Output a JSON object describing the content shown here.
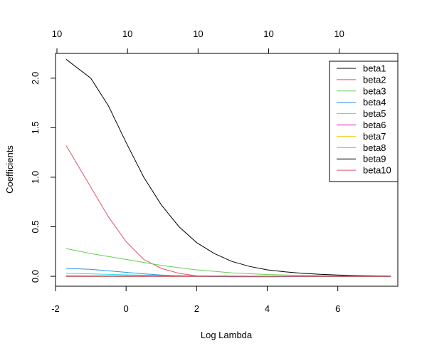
{
  "chart_data": {
    "type": "line",
    "title": "",
    "xlabel": "Log Lambda",
    "ylabel": "Coefficients",
    "xlim": [
      -2,
      7.7
    ],
    "ylim": [
      -0.1,
      2.25
    ],
    "x_ticks": [
      -2,
      0,
      2,
      4,
      6
    ],
    "x_tick_labels": [
      "-2",
      "0",
      "2",
      "4",
      "6"
    ],
    "y_ticks": [
      0.0,
      0.5,
      1.0,
      1.5,
      2.0
    ],
    "y_tick_labels": [
      "0.0",
      "0.5",
      "1.0",
      "1.5",
      "2.0"
    ],
    "top_axis": {
      "ticks": [
        -2,
        0,
        2,
        4,
        6
      ],
      "labels": [
        "10",
        "10",
        "10",
        "10",
        "10"
      ]
    },
    "grid": false,
    "legend_position": "top-right",
    "series": [
      {
        "name": "beta1",
        "color": "#000000",
        "x": [
          -1.7,
          -1.0,
          -0.5,
          0.0,
          0.5,
          1.0,
          1.5,
          2.0,
          2.5,
          3.0,
          3.5,
          4.0,
          4.5,
          5.0,
          5.5,
          6.0,
          6.5,
          7.0,
          7.5
        ],
        "y": [
          2.19,
          2.0,
          1.72,
          1.35,
          1.0,
          0.72,
          0.5,
          0.34,
          0.23,
          0.15,
          0.1,
          0.065,
          0.045,
          0.03,
          0.02,
          0.013,
          0.008,
          0.005,
          0.003
        ]
      },
      {
        "name": "beta2",
        "color": "#DF536B",
        "x": [
          -1.7,
          -1.0,
          -0.5,
          0.0,
          0.5,
          1.0,
          1.5,
          2.0
        ],
        "y": [
          1.32,
          0.9,
          0.6,
          0.35,
          0.17,
          0.08,
          0.03,
          0.005
        ]
      },
      {
        "name": "beta3",
        "color": "#61D04F",
        "x": [
          -1.7,
          -1.0,
          0.0,
          1.0,
          2.0,
          3.0,
          4.0,
          5.0,
          6.0,
          7.5
        ],
        "y": [
          0.28,
          0.23,
          0.17,
          0.11,
          0.065,
          0.035,
          0.018,
          0.009,
          0.004,
          0.001
        ]
      },
      {
        "name": "beta4",
        "color": "#2297E6",
        "x": [
          -1.7,
          -1.0,
          0.0,
          0.5,
          1.0,
          2.0,
          3.0,
          4.0,
          5.0,
          6.0,
          7.5
        ],
        "y": [
          0.08,
          0.07,
          0.04,
          0.025,
          0.013,
          0.0,
          -0.005,
          -0.005,
          -0.002,
          0.0,
          0.0
        ]
      },
      {
        "name": "beta5",
        "color": "#28E2E5",
        "x": [
          -1.7,
          -1.0,
          0.0,
          1.0,
          2.0,
          3.0,
          4.0,
          5.0,
          7.5
        ],
        "y": [
          0.03,
          0.025,
          0.015,
          0.008,
          0.004,
          0.002,
          0.001,
          0.0,
          0.0
        ]
      },
      {
        "name": "beta6",
        "color": "#CD0BBC",
        "x": [
          -1.7,
          0.0,
          1.0,
          2.0,
          3.0,
          4.0,
          5.0,
          7.5
        ],
        "y": [
          0.005,
          0.004,
          0.003,
          0.002,
          0.001,
          0.0,
          0.0,
          0.0
        ]
      },
      {
        "name": "beta7",
        "color": "#F5C710",
        "x": [
          -1.7,
          0.0,
          1.0,
          2.0,
          3.0,
          4.0,
          5.0,
          7.5
        ],
        "y": [
          0.0,
          0.0,
          0.0,
          0.0,
          0.0,
          0.0,
          0.0,
          0.0
        ]
      },
      {
        "name": "beta8",
        "color": "#9E9E9E",
        "x": [
          -1.7,
          0.0,
          1.0,
          2.0,
          3.0,
          4.0,
          5.0,
          7.5
        ],
        "y": [
          0.004,
          0.003,
          0.002,
          0.001,
          0.0,
          0.0,
          0.0,
          0.0
        ]
      },
      {
        "name": "beta9",
        "color": "#000000",
        "x": [
          -1.7,
          0.0,
          1.0,
          2.0,
          3.0,
          4.0,
          5.0,
          7.5
        ],
        "y": [
          0.0,
          0.0,
          0.0,
          0.0,
          0.0,
          0.0,
          0.0,
          0.0
        ]
      },
      {
        "name": "beta10",
        "color": "#DF536B",
        "x": [
          -1.7,
          0.0,
          1.0,
          2.0,
          3.0,
          4.0,
          5.0,
          7.5
        ],
        "y": [
          0.0,
          0.0,
          0.0,
          0.0,
          0.0,
          0.0,
          0.0,
          0.0
        ]
      }
    ]
  }
}
